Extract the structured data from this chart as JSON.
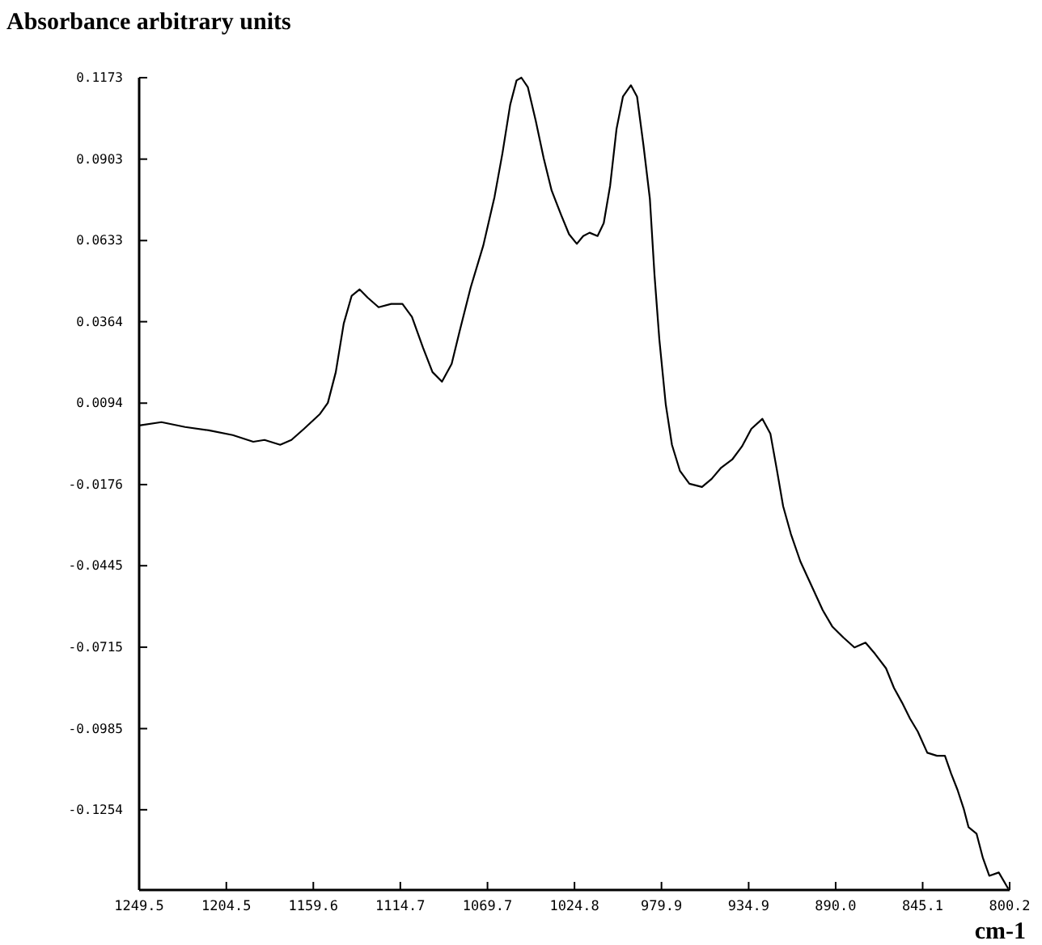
{
  "chart_data": {
    "type": "line",
    "ylabel": "Absorbance arbitrary units",
    "xlabel": "cm-1",
    "xlim": [
      1249.5,
      800.2
    ],
    "ylim": [
      -0.152,
      0.1173
    ],
    "xticks": [
      1249.5,
      1204.5,
      1159.6,
      1114.7,
      1069.7,
      1024.8,
      979.9,
      934.9,
      {
        "value": 890.0,
        "label": "890.0"
      },
      845.1,
      800.2
    ],
    "yticks": [
      0.1173,
      0.0903,
      0.0633,
      0.0364,
      0.0094,
      -0.0176,
      -0.0445,
      -0.0715,
      -0.0985,
      -0.1254
    ],
    "grid": false,
    "marker": "none",
    "line_style": "solid",
    "series": [
      {
        "color": "#000000",
        "x": [
          1249.5,
          1238.0,
          1225.8,
          1213.5,
          1201.2,
          1190.6,
          1184.8,
          1176.7,
          1170.9,
          1164.4,
          1156.2,
          1152.1,
          1148.0,
          1143.9,
          1139.8,
          1135.7,
          1131.6,
          1125.9,
          1119.4,
          1113.6,
          1108.7,
          1103.0,
          1098.1,
          1093.2,
          1088.2,
          1084.1,
          1078.4,
          1071.9,
          1066.1,
          1062.0,
          1058.0,
          1054.7,
          1052.2,
          1048.9,
          1044.8,
          1040.7,
          1036.6,
          1031.7,
          1027.6,
          1023.6,
          1020.3,
          1017.0,
          1012.9,
          1009.7,
          1006.4,
          1003.1,
          999.8,
          995.7,
          992.5,
          989.2,
          985.9,
          983.5,
          981.0,
          977.7,
          974.5,
          970.4,
          965.5,
          959.0,
          954.0,
          949.1,
          943.4,
          938.4,
          933.5,
          927.8,
          923.7,
          920.4,
          917.1,
          913.1,
          908.2,
          902.4,
          896.7,
          891.8,
          886.0,
          880.3,
          874.6,
          869.7,
          864.0,
          859.9,
          855.8,
          851.6,
          847.6,
          842.7,
          837.7,
          833.6,
          830.4,
          827.1,
          823.8,
          821.4,
          817.3,
          814.0,
          810.7,
          805.8,
          800.9
        ],
        "values": [
          0.002,
          0.0031,
          0.0015,
          0.0004,
          -0.0012,
          -0.0034,
          -0.0028,
          -0.0044,
          -0.0028,
          0.0009,
          0.0058,
          0.0095,
          0.0197,
          0.0358,
          0.045,
          0.0471,
          0.0444,
          0.0412,
          0.0423,
          0.0423,
          0.038,
          0.0278,
          0.0197,
          0.0165,
          0.0224,
          0.0332,
          0.0477,
          0.0616,
          0.0777,
          0.0922,
          0.1083,
          0.1164,
          0.1173,
          0.1142,
          0.103,
          0.0906,
          0.0799,
          0.0718,
          0.0654,
          0.0622,
          0.0648,
          0.0659,
          0.0648,
          0.0691,
          0.0815,
          0.1003,
          0.111,
          0.1148,
          0.111,
          0.0949,
          0.0772,
          0.0519,
          0.0305,
          0.009,
          -0.0044,
          -0.013,
          -0.0173,
          -0.0184,
          -0.0157,
          -0.012,
          -0.0093,
          -0.005,
          0.0009,
          0.0042,
          -0.0007,
          -0.0125,
          -0.0248,
          -0.034,
          -0.0431,
          -0.0512,
          -0.0592,
          -0.0646,
          -0.0683,
          -0.0716,
          -0.07,
          -0.0737,
          -0.0785,
          -0.085,
          -0.0898,
          -0.0952,
          -0.0995,
          -0.1065,
          -0.1075,
          -0.1075,
          -0.1134,
          -0.1188,
          -0.1253,
          -0.1312,
          -0.1333,
          -0.1414,
          -0.1473,
          -0.1462,
          -0.1516
        ]
      }
    ]
  }
}
